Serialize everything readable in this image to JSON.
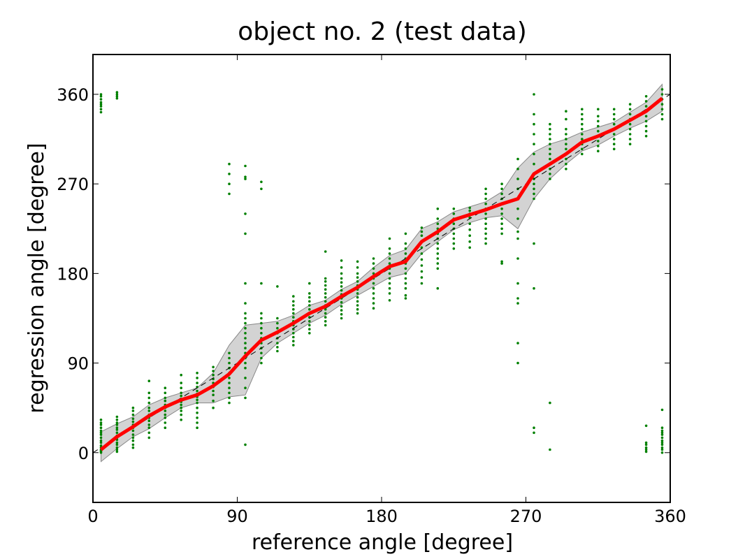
{
  "chart_data": {
    "type": "line",
    "title": "object no. 2 (test data)",
    "xlabel": "reference angle [degree]",
    "ylabel": "regression angle [degree]",
    "xlim": [
      0,
      360
    ],
    "ylim": [
      -50,
      400
    ],
    "xticks": [
      0,
      90,
      180,
      270,
      360
    ],
    "yticks": [
      0,
      90,
      180,
      270,
      360
    ],
    "grid": false,
    "colors": {
      "mean_line": "#ff0000",
      "band_fill": "#d3d3d3",
      "band_edge": "#888888",
      "points": "#008000",
      "reference_line": "#000000"
    },
    "reference_line": {
      "x": [
        0,
        360
      ],
      "y": [
        0,
        360
      ],
      "style": "dashed"
    },
    "x": [
      5,
      15,
      25,
      35,
      45,
      55,
      65,
      75,
      85,
      95,
      105,
      115,
      125,
      135,
      145,
      155,
      165,
      175,
      185,
      195,
      205,
      215,
      225,
      235,
      245,
      255,
      265,
      275,
      285,
      295,
      305,
      315,
      325,
      335,
      345,
      355
    ],
    "series": [
      {
        "values": [
          3,
          16,
          26,
          37,
          46,
          53,
          58,
          67,
          79,
          97,
          113,
          121,
          130,
          140,
          147,
          157,
          166,
          177,
          187,
          192,
          212,
          222,
          234,
          239,
          244,
          250,
          255,
          280,
          290,
          300,
          312,
          318,
          325,
          334,
          343,
          356
        ]
      }
    ],
    "band": {
      "upper": [
        21,
        29,
        36,
        48,
        55,
        60,
        65,
        80,
        108,
        128,
        130,
        132,
        138,
        148,
        153,
        164,
        172,
        186,
        198,
        204,
        225,
        232,
        242,
        247,
        252,
        262,
        286,
        302,
        310,
        315,
        322,
        327,
        332,
        342,
        352,
        370
      ],
      "lower": [
        -9,
        4,
        16,
        24,
        35,
        45,
        50,
        50,
        56,
        58,
        95,
        110,
        120,
        130,
        138,
        149,
        158,
        167,
        176,
        180,
        200,
        212,
        224,
        231,
        236,
        238,
        225,
        255,
        275,
        290,
        303,
        309,
        318,
        326,
        333,
        343
      ]
    },
    "scatter": [
      {
        "x": 5,
        "y": [
          0,
          1,
          2,
          3,
          5,
          7,
          10,
          12,
          15,
          18,
          20,
          22,
          25,
          28,
          30,
          33,
          342,
          345,
          348,
          350,
          352,
          355,
          358,
          360
        ]
      },
      {
        "x": 15,
        "y": [
          1,
          3,
          5,
          8,
          10,
          13,
          15,
          17,
          20,
          23,
          25,
          28,
          30,
          33,
          36,
          356,
          358,
          360,
          362
        ]
      },
      {
        "x": 25,
        "y": [
          5,
          8,
          12,
          15,
          18,
          22,
          25,
          28,
          31,
          34,
          38,
          42,
          45
        ]
      },
      {
        "x": 35,
        "y": [
          15,
          20,
          25,
          28,
          32,
          35,
          38,
          42,
          45,
          50,
          55,
          60,
          72
        ]
      },
      {
        "x": 45,
        "y": [
          25,
          30,
          35,
          38,
          42,
          45,
          48,
          52,
          55,
          60,
          65
        ]
      },
      {
        "x": 55,
        "y": [
          33,
          38,
          42,
          45,
          48,
          51,
          54,
          57,
          60,
          65,
          70,
          78
        ]
      },
      {
        "x": 65,
        "y": [
          25,
          30,
          35,
          40,
          45,
          50,
          53,
          56,
          59,
          62,
          66,
          70,
          75,
          80
        ]
      },
      {
        "x": 75,
        "y": [
          45,
          52,
          58,
          62,
          66,
          70,
          74,
          78,
          82,
          86
        ]
      },
      {
        "x": 85,
        "y": [
          50,
          55,
          60,
          65,
          70,
          75,
          80,
          85,
          90,
          95,
          100,
          260,
          270,
          280,
          290
        ]
      },
      {
        "x": 95,
        "y": [
          8,
          55,
          65,
          75,
          85,
          90,
          95,
          100,
          105,
          110,
          115,
          120,
          125,
          130,
          135,
          140,
          150,
          170,
          220,
          240,
          275,
          277,
          288
        ]
      },
      {
        "x": 105,
        "y": [
          90,
          95,
          100,
          105,
          110,
          115,
          120,
          125,
          130,
          135,
          140,
          170,
          265,
          272
        ]
      },
      {
        "x": 115,
        "y": [
          102,
          106,
          110,
          115,
          120,
          125,
          130,
          135,
          167
        ]
      },
      {
        "x": 125,
        "y": [
          108,
          112,
          116,
          120,
          124,
          128,
          132,
          136,
          140,
          144,
          148,
          152,
          157
        ]
      },
      {
        "x": 135,
        "y": [
          120,
          124,
          128,
          132,
          136,
          140,
          144,
          148,
          152,
          156,
          160,
          170
        ]
      },
      {
        "x": 145,
        "y": [
          128,
          132,
          136,
          140,
          144,
          148,
          152,
          156,
          160,
          164,
          168,
          172,
          175,
          202
        ]
      },
      {
        "x": 155,
        "y": [
          135,
          139,
          143,
          147,
          151,
          155,
          159,
          163,
          167,
          171,
          175,
          180,
          186,
          193
        ]
      },
      {
        "x": 165,
        "y": [
          140,
          144,
          148,
          152,
          156,
          160,
          164,
          168,
          172,
          176,
          180,
          186,
          192
        ]
      },
      {
        "x": 175,
        "y": [
          145,
          150,
          155,
          160,
          165,
          170,
          175,
          180,
          185,
          190,
          195
        ]
      },
      {
        "x": 185,
        "y": [
          153,
          160,
          165,
          170,
          175,
          180,
          185,
          190,
          195,
          200,
          205,
          215
        ]
      },
      {
        "x": 195,
        "y": [
          155,
          158,
          165,
          170,
          175,
          180,
          185,
          190,
          195,
          200,
          205,
          210,
          220
        ]
      },
      {
        "x": 205,
        "y": [
          170,
          176,
          182,
          188,
          194,
          200,
          206,
          212,
          218,
          222,
          226
        ]
      },
      {
        "x": 215,
        "y": [
          165,
          185,
          190,
          195,
          200,
          205,
          210,
          215,
          220,
          225,
          230,
          235,
          245
        ]
      },
      {
        "x": 225,
        "y": [
          205,
          210,
          215,
          220,
          225,
          230,
          235,
          240,
          245
        ]
      },
      {
        "x": 235,
        "y": [
          206,
          212,
          218,
          224,
          230,
          236,
          240,
          243,
          246
        ]
      },
      {
        "x": 245,
        "y": [
          210,
          215,
          220,
          225,
          230,
          235,
          240,
          245,
          250,
          255,
          260,
          265
        ]
      },
      {
        "x": 255,
        "y": [
          190,
          192,
          220,
          225,
          230,
          235,
          240,
          245,
          250,
          255,
          260,
          265,
          270
        ]
      },
      {
        "x": 265,
        "y": [
          90,
          110,
          150,
          155,
          170,
          195,
          215,
          222,
          235,
          245,
          255,
          265,
          275,
          285,
          295
        ]
      },
      {
        "x": 275,
        "y": [
          20,
          25,
          165,
          210,
          255,
          260,
          265,
          270,
          275,
          280,
          290,
          300,
          310,
          320,
          330,
          340,
          360
        ]
      },
      {
        "x": 285,
        "y": [
          3,
          50,
          275,
          280,
          285,
          290,
          295,
          300,
          305,
          310,
          315,
          320,
          325,
          330
        ]
      },
      {
        "x": 295,
        "y": [
          285,
          290,
          295,
          300,
          305,
          310,
          315,
          320,
          325,
          335,
          343
        ]
      },
      {
        "x": 305,
        "y": [
          300,
          305,
          310,
          315,
          320,
          325,
          330,
          335,
          340,
          345
        ]
      },
      {
        "x": 315,
        "y": [
          303,
          308,
          313,
          318,
          323,
          328,
          333,
          338,
          345
        ]
      },
      {
        "x": 325,
        "y": [
          305,
          310,
          315,
          320,
          325,
          330,
          335,
          340,
          345
        ]
      },
      {
        "x": 335,
        "y": [
          310,
          315,
          320,
          325,
          330,
          335,
          340,
          345,
          350
        ]
      },
      {
        "x": 345,
        "y": [
          1,
          3,
          5,
          8,
          10,
          27,
          318,
          323,
          328,
          333,
          338,
          343,
          348,
          353,
          358
        ]
      },
      {
        "x": 355,
        "y": [
          0,
          3,
          5,
          8,
          10,
          12,
          15,
          18,
          20,
          22,
          25,
          43,
          335,
          340,
          345,
          350,
          355,
          360,
          365
        ]
      }
    ]
  }
}
